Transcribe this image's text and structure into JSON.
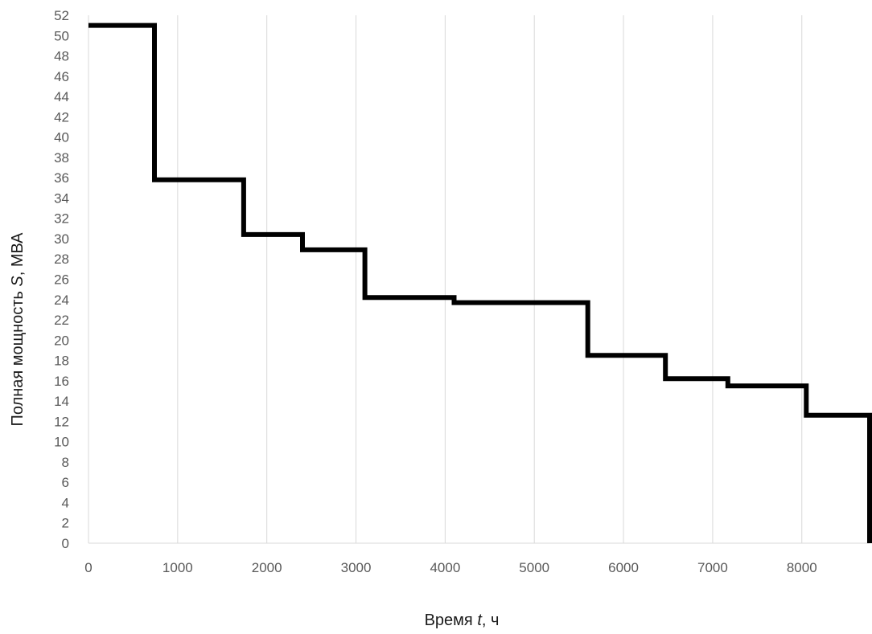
{
  "chart_data": {
    "type": "line",
    "step": true,
    "title": "",
    "xlabel": {
      "prefix": "Время ",
      "symbol": "t",
      "suffix": ", ч"
    },
    "ylabel": {
      "prefix": "Полная мощность ",
      "symbol": "S",
      "suffix": ", МВА"
    },
    "xlim": [
      0,
      8760
    ],
    "ylim": [
      0,
      52
    ],
    "x_ticks": [
      0,
      1000,
      2000,
      3000,
      4000,
      5000,
      6000,
      7000,
      8000
    ],
    "y_ticks": [
      0,
      2,
      4,
      6,
      8,
      10,
      12,
      14,
      16,
      18,
      20,
      22,
      24,
      26,
      28,
      30,
      32,
      34,
      36,
      38,
      40,
      42,
      44,
      46,
      48,
      50,
      52
    ],
    "grid": "vertical",
    "legend": "none",
    "series": [
      {
        "color": "#000000",
        "points": [
          {
            "x": 0,
            "y": 51
          },
          {
            "x": 740,
            "y": 51
          },
          {
            "x": 740,
            "y": 35.8
          },
          {
            "x": 1740,
            "y": 35.8
          },
          {
            "x": 1740,
            "y": 30.4
          },
          {
            "x": 2400,
            "y": 30.4
          },
          {
            "x": 2400,
            "y": 28.9
          },
          {
            "x": 3100,
            "y": 28.9
          },
          {
            "x": 3100,
            "y": 24.2
          },
          {
            "x": 4100,
            "y": 24.2
          },
          {
            "x": 4100,
            "y": 23.7
          },
          {
            "x": 5600,
            "y": 23.7
          },
          {
            "x": 5600,
            "y": 18.5
          },
          {
            "x": 6470,
            "y": 18.5
          },
          {
            "x": 6470,
            "y": 16.2
          },
          {
            "x": 7170,
            "y": 16.2
          },
          {
            "x": 7170,
            "y": 15.5
          },
          {
            "x": 8050,
            "y": 15.5
          },
          {
            "x": 8050,
            "y": 12.6
          },
          {
            "x": 8760,
            "y": 12.6
          },
          {
            "x": 8760,
            "y": 0
          }
        ]
      }
    ]
  }
}
